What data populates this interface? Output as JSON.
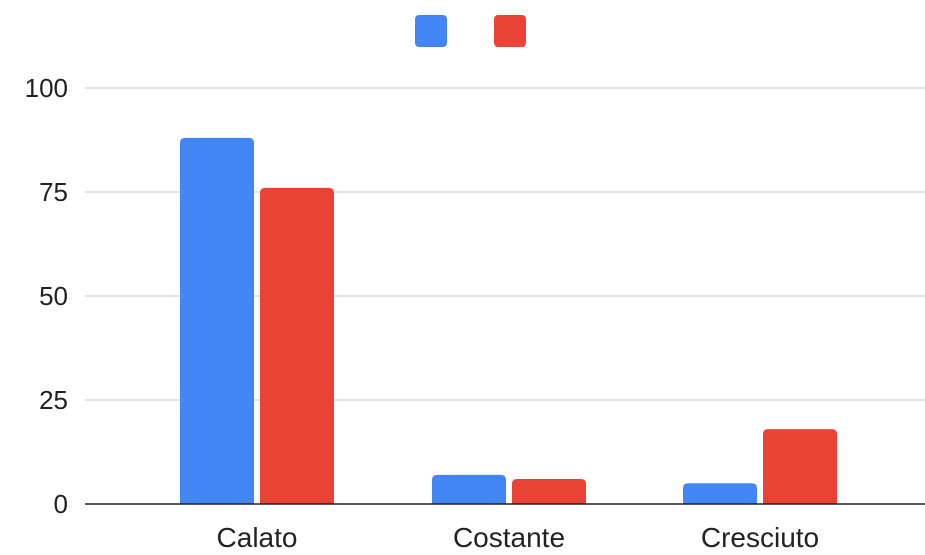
{
  "chart_data": {
    "type": "bar",
    "title": "",
    "xlabel": "",
    "ylabel": "",
    "categories": [
      "Calato",
      "Costante",
      "Cresciuto"
    ],
    "series": [
      {
        "color": "#4285f4",
        "values": [
          88,
          7,
          5
        ]
      },
      {
        "color": "#ea4335",
        "values": [
          76,
          6,
          18
        ]
      }
    ],
    "ylim": [
      0,
      100
    ],
    "yticks": [
      0,
      25,
      50,
      75,
      100
    ],
    "grid": true,
    "legend": {
      "position": "top"
    }
  }
}
